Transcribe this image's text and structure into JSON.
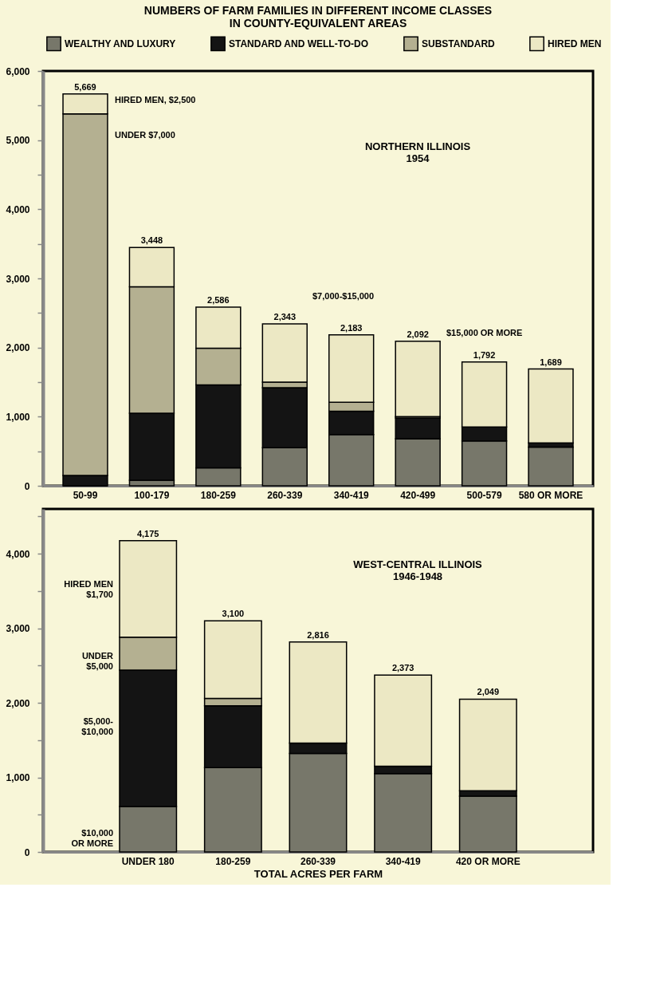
{
  "chart_data": [
    {
      "type": "bar",
      "title": "NUMBERS OF FARM FAMILIES IN DIFFERENT INCOME CLASSES\nIN COUNTY-EQUIVALENT AREAS",
      "subtitle": "NORTHERN ILLINOIS\n1954",
      "stacked": true,
      "legend": "top",
      "grid": false,
      "categories": [
        "50-99",
        "100-179",
        "180-259",
        "260-339",
        "340-419",
        "420-499",
        "500-579",
        "580 OR MORE"
      ],
      "series": [
        {
          "name": "WEALTHY AND LUXURY",
          "color": "#77776a",
          "values": [
            0,
            80,
            260,
            550,
            740,
            680,
            650,
            560
          ]
        },
        {
          "name": "STANDARD AND WELL-TO-DO",
          "color": "#141414",
          "values": [
            150,
            970,
            1200,
            870,
            340,
            300,
            200,
            60
          ]
        },
        {
          "name": "SUBSTANDARD",
          "color": "#b4b091",
          "values": [
            5230,
            1830,
            530,
            80,
            130,
            20,
            0,
            0
          ]
        },
        {
          "name": "HIRED MEN",
          "color": "#ece8c4",
          "values": [
            289,
            568,
            596,
            843,
            973,
            1092,
            942,
            1069
          ]
        }
      ],
      "totals": [
        "5,669",
        "3,448",
        "2,586",
        "2,343",
        "2,183",
        "2,092",
        "1,792",
        "1,689"
      ],
      "ylim": [
        0,
        6000
      ],
      "yticks": [
        0,
        {
          "value": 500,
          "label": null
        },
        {
          "value": 1000,
          "label": "1,000"
        },
        {
          "value": 1500,
          "label": null
        },
        {
          "value": 2000,
          "label": "2,000"
        },
        {
          "value": 2500,
          "label": null
        },
        {
          "value": 3000,
          "label": "3,000"
        },
        {
          "value": 3500,
          "label": null
        },
        {
          "value": 4000,
          "label": "4,000"
        },
        {
          "value": 4500,
          "label": null
        },
        {
          "value": 5000,
          "label": "5,000"
        },
        {
          "value": 5500,
          "label": null
        },
        {
          "value": 6000,
          "label": "6,000"
        }
      ],
      "annotations": [
        "HIRED MEN, $2,500",
        "UNDER $7,000",
        "$7,000-$15,000",
        "$15,000 OR MORE"
      ]
    },
    {
      "type": "bar",
      "subtitle": "WEST-CENTRAL ILLINOIS\n1946-1948",
      "xlabel": "TOTAL ACRES PER FARM",
      "stacked": true,
      "grid": false,
      "categories": [
        "UNDER 180",
        "180-259",
        "260-339",
        "340-419",
        "420 OR MORE"
      ],
      "series": [
        {
          "color": "#77776a",
          "values": [
            610,
            1130,
            1320,
            1050,
            750
          ]
        },
        {
          "color": "#141414",
          "values": [
            1830,
            830,
            140,
            100,
            70
          ]
        },
        {
          "color": "#b4b091",
          "values": [
            440,
            100,
            0,
            0,
            0
          ]
        },
        {
          "color": "#ece8c4",
          "values": [
            1295,
            1040,
            1356,
            1223,
            1229
          ]
        }
      ],
      "totals": [
        "4,175",
        "3,100",
        "2,816",
        "2,373",
        "2,049"
      ],
      "ylim": [
        0,
        4600
      ],
      "yticks": [
        0,
        {
          "value": 500,
          "label": null
        },
        {
          "value": 1000,
          "label": "1,000"
        },
        {
          "value": 1500,
          "label": null
        },
        {
          "value": 2000,
          "label": "2,000"
        },
        {
          "value": 2500,
          "label": null
        },
        {
          "value": 3000,
          "label": "3,000"
        },
        {
          "value": 3500,
          "label": null
        },
        {
          "value": 4000,
          "label": "4,000"
        },
        {
          "value": 4500,
          "label": null
        }
      ],
      "annotations": [
        "HIRED MEN\n$1,700",
        "UNDER\n$5,000",
        "$5,000-\n$10,000",
        "$10,000\nOR MORE"
      ]
    }
  ]
}
